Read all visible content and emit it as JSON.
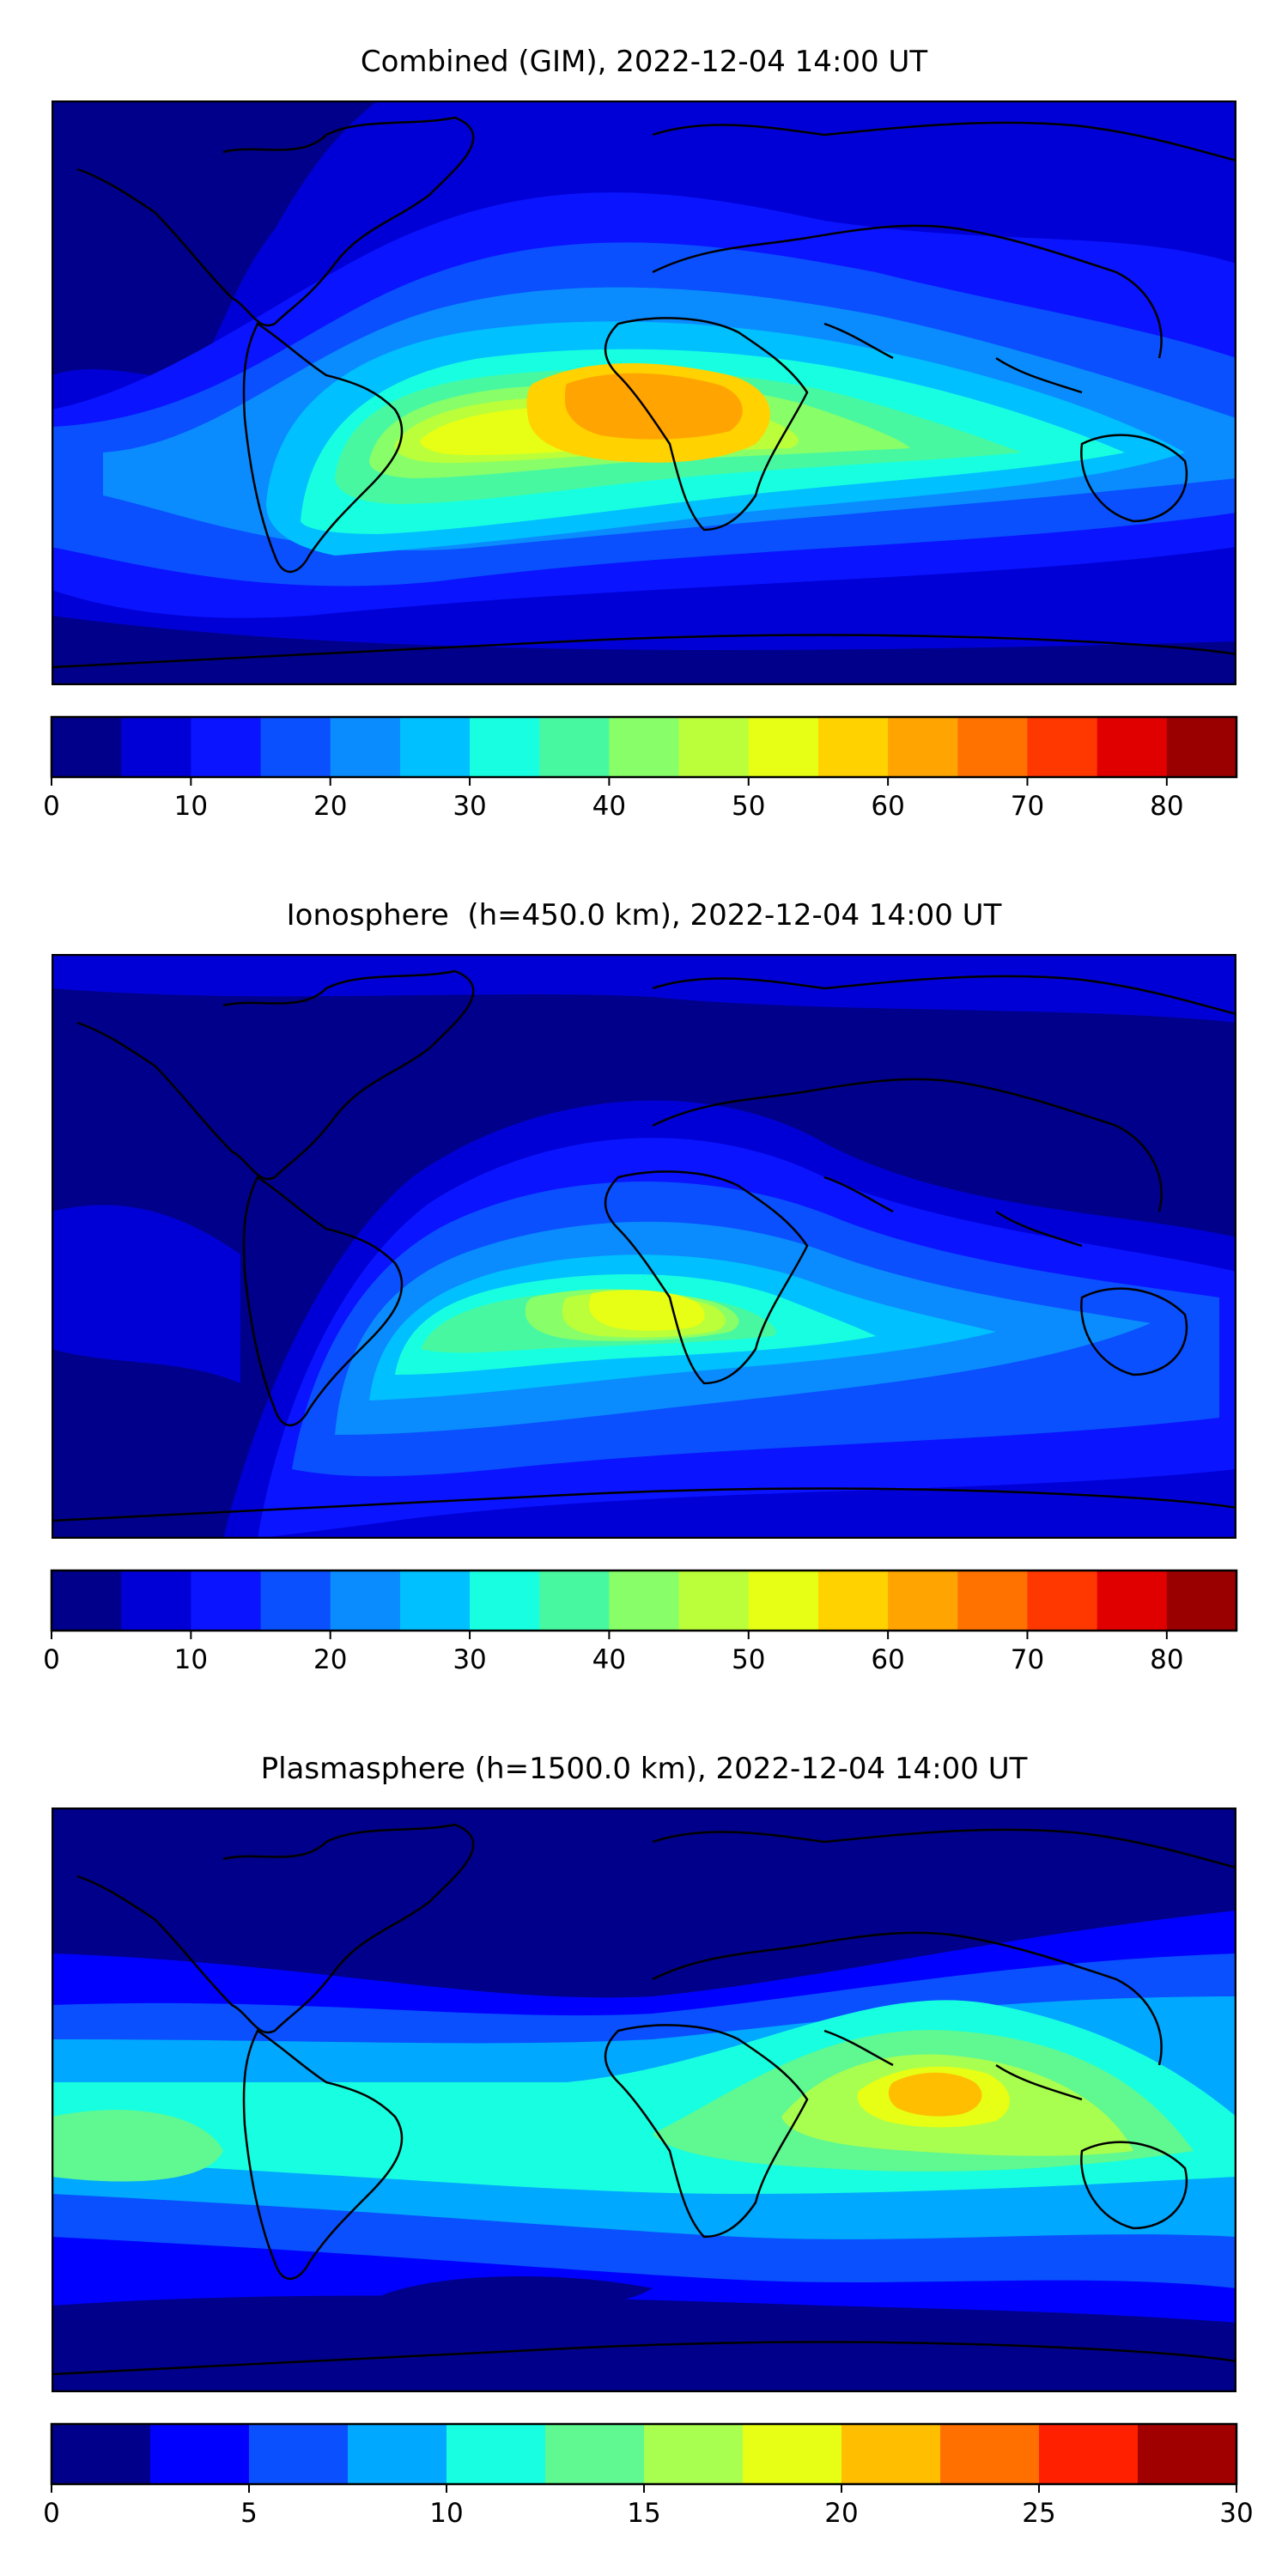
{
  "panels": [
    {
      "title": "Combined (GIM), 2022-12-04 14:00 UT",
      "colorbar": {
        "min": 0,
        "max": 85,
        "step": 5,
        "ticks": [
          0,
          10,
          20,
          30,
          40,
          50,
          60,
          70,
          80
        ],
        "tick_labels": [
          "0",
          "10",
          "20",
          "30",
          "40",
          "50",
          "60",
          "70",
          "80"
        ],
        "colors": [
          "#00008a",
          "#0000d6",
          "#0a14ff",
          "#0a50ff",
          "#0a8cff",
          "#00c0ff",
          "#17ffe0",
          "#48f8a0",
          "#88ff68",
          "#baff3a",
          "#e6ff14",
          "#ffd200",
          "#ffa400",
          "#ff7200",
          "#ff3800",
          "#e00000",
          "#9a0000"
        ]
      }
    },
    {
      "title": "Ionosphere  (h=450.0 km), 2022-12-04 14:00 UT",
      "colorbar": {
        "min": 0,
        "max": 85,
        "step": 5,
        "ticks": [
          0,
          10,
          20,
          30,
          40,
          50,
          60,
          70,
          80
        ],
        "tick_labels": [
          "0",
          "10",
          "20",
          "30",
          "40",
          "50",
          "60",
          "70",
          "80"
        ],
        "colors": [
          "#00008a",
          "#0000d6",
          "#0a14ff",
          "#0a50ff",
          "#0a8cff",
          "#00c0ff",
          "#17ffe0",
          "#48f8a0",
          "#88ff68",
          "#baff3a",
          "#e6ff14",
          "#ffd200",
          "#ffa400",
          "#ff7200",
          "#ff3800",
          "#e00000",
          "#9a0000"
        ]
      }
    },
    {
      "title": "Plasmasphere (h=1500.0 km), 2022-12-04 14:00 UT",
      "colorbar": {
        "min": 0,
        "max": 30,
        "step": 2.5,
        "ticks": [
          0,
          5,
          10,
          15,
          20,
          25,
          30
        ],
        "tick_labels": [
          "0",
          "5",
          "10",
          "15",
          "20",
          "25",
          "30"
        ],
        "colors": [
          "#00008a",
          "#0000ff",
          "#0a50ff",
          "#00a8ff",
          "#17ffe0",
          "#60f890",
          "#a8ff50",
          "#e6ff14",
          "#ffbe00",
          "#ff7000",
          "#ff2000",
          "#a00000"
        ]
      }
    }
  ],
  "chart_data": [
    {
      "type": "heatmap",
      "title": "Combined (GIM), 2022-12-04 14:00 UT",
      "xlabel": "",
      "ylabel": "",
      "map": "world",
      "levels": [
        0,
        5,
        10,
        15,
        20,
        25,
        30,
        35,
        40,
        45,
        50,
        55,
        60,
        65,
        70,
        75,
        80,
        85
      ],
      "peak": {
        "region": "central Africa / South Atlantic",
        "value": 62
      },
      "value_min": 2,
      "contours": [
        {
          "level": 10,
          "region": "high latitudes and poles"
        },
        {
          "level": 20,
          "region": "mid latitudes"
        },
        {
          "level": 30,
          "region": "low latitudes band"
        },
        {
          "level": 40,
          "region": "South America / Africa / Indian Ocean"
        },
        {
          "level": 50,
          "region": "South Atlantic and central Africa"
        },
        {
          "level": 55,
          "region": "central Africa core"
        },
        {
          "level": 60,
          "region": "Congo basin maximum"
        }
      ]
    },
    {
      "type": "heatmap",
      "title": "Ionosphere  (h=450.0 km), 2022-12-04 14:00 UT",
      "xlabel": "",
      "ylabel": "",
      "map": "world",
      "levels": [
        0,
        5,
        10,
        15,
        20,
        25,
        30,
        35,
        40,
        45,
        50,
        55,
        60,
        65,
        70,
        75,
        80,
        85
      ],
      "peak": {
        "region": "southern Africa",
        "value": 52
      },
      "value_min": 2,
      "contours": [
        {
          "level": 10,
          "region": "Pacific and high latitudes"
        },
        {
          "level": 20,
          "region": "Atlantic mid latitudes"
        },
        {
          "level": 30,
          "region": "South America / Africa band"
        },
        {
          "level": 40,
          "region": "South Atlantic and Africa"
        },
        {
          "level": 50,
          "region": "southern Africa core"
        }
      ]
    },
    {
      "type": "heatmap",
      "title": "Plasmasphere (h=1500.0 km), 2022-12-04 14:00 UT",
      "xlabel": "",
      "ylabel": "",
      "map": "world",
      "levels": [
        0,
        2.5,
        5,
        7.5,
        10,
        12.5,
        15,
        17.5,
        20,
        22.5,
        25,
        27.5,
        30
      ],
      "peak": {
        "region": "Indian Ocean near India",
        "value": 21
      },
      "value_min": 1,
      "contours": [
        {
          "level": 5,
          "region": "high latitudes"
        },
        {
          "level": 7.5,
          "region": "mid latitudes"
        },
        {
          "level": 10,
          "region": "low latitudes belt"
        },
        {
          "level": 12.5,
          "region": "Africa to Australia"
        },
        {
          "level": 15,
          "region": "Indian Ocean and Australia"
        },
        {
          "level": 17.5,
          "region": "Arabian Sea / Bay of Bengal"
        },
        {
          "level": 20,
          "region": "south of India"
        }
      ]
    }
  ]
}
